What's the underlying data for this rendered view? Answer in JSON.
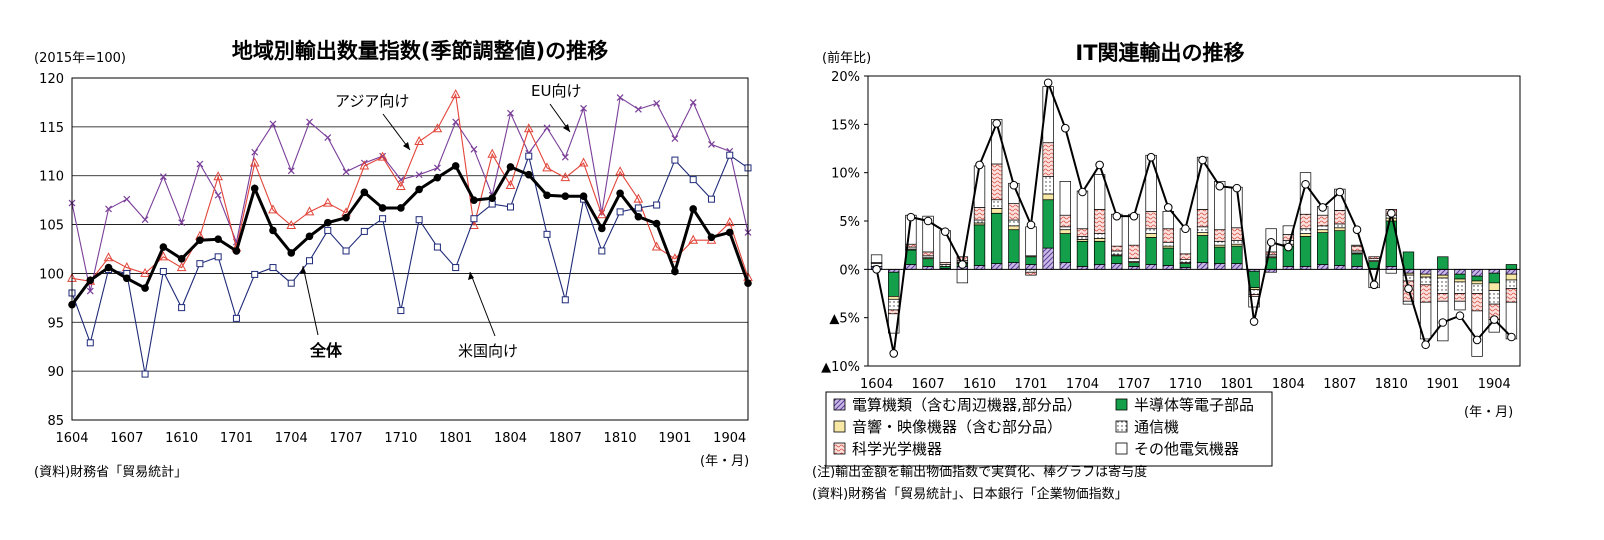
{
  "chart_data": [
    {
      "type": "line",
      "title": "地域別輸出数量指数(季節調整値)の推移",
      "unit_label": "(2015年=100)",
      "xlabel": "(年・月)",
      "source": "(資料)財務省「貿易統計」",
      "ylim": [
        85,
        120
      ],
      "yticks": [
        85,
        90,
        95,
        100,
        105,
        110,
        115,
        120
      ],
      "grid": true,
      "x": [
        "1604",
        "1605",
        "1606",
        "1607",
        "1608",
        "1609",
        "1610",
        "1611",
        "1612",
        "1701",
        "1702",
        "1703",
        "1704",
        "1705",
        "1706",
        "1707",
        "1708",
        "1709",
        "1710",
        "1711",
        "1712",
        "1801",
        "1802",
        "1803",
        "1804",
        "1805",
        "1806",
        "1807",
        "1808",
        "1809",
        "1810",
        "1811",
        "1812",
        "1901",
        "1902",
        "1903",
        "1904",
        "1905"
      ],
      "xtick_labels": [
        "1604",
        "1607",
        "1610",
        "1701",
        "1704",
        "1707",
        "1710",
        "1801",
        "1804",
        "1807",
        "1810",
        "1901",
        "1904"
      ],
      "series": [
        {
          "name": "全体",
          "color": "#000000",
          "values": [
            96.8,
            99.3,
            100.6,
            99.5,
            98.5,
            102.7,
            101.5,
            103.4,
            103.5,
            102.3,
            108.7,
            104.4,
            102.1,
            103.8,
            105.2,
            105.7,
            108.3,
            106.7,
            106.7,
            108.6,
            109.8,
            111.0,
            107.5,
            107.7,
            110.9,
            110.1,
            108.0,
            107.9,
            107.9,
            104.6,
            108.2,
            105.8,
            105.1,
            100.2,
            106.6,
            103.7,
            104.2,
            99.0
          ]
        },
        {
          "name": "アジア向け",
          "color": "#e2453a",
          "values": [
            99.5,
            99.2,
            101.6,
            100.6,
            100.0,
            101.7,
            100.6,
            103.8,
            109.9,
            102.6,
            111.3,
            106.5,
            104.9,
            106.3,
            107.2,
            106.2,
            111.0,
            111.9,
            108.9,
            113.5,
            114.8,
            118.3,
            104.9,
            112.2,
            109.0,
            114.8,
            110.8,
            109.8,
            111.3,
            106.0,
            110.4,
            107.6,
            102.7,
            101.5,
            103.4,
            103.4,
            105.2,
            99.6
          ]
        },
        {
          "name": "EU向け",
          "color": "#7a3f99",
          "values": [
            107.2,
            98.2,
            106.6,
            107.6,
            105.5,
            109.9,
            105.2,
            111.2,
            108.0,
            103.2,
            112.4,
            115.3,
            110.5,
            115.5,
            113.9,
            110.4,
            111.3,
            112.0,
            109.6,
            110.1,
            110.8,
            115.5,
            112.7,
            108.0,
            116.4,
            112.3,
            114.9,
            111.9,
            116.9,
            106.2,
            118.0,
            116.8,
            117.4,
            113.8,
            117.5,
            113.2,
            112.5,
            104.2
          ]
        },
        {
          "name": "米国向け",
          "color": "#1f2a78",
          "values": [
            98.0,
            92.9,
            100.4,
            100.0,
            89.7,
            100.2,
            96.5,
            101.0,
            101.7,
            95.4,
            99.9,
            100.6,
            99.0,
            101.3,
            104.4,
            102.3,
            104.3,
            105.6,
            96.2,
            105.5,
            102.7,
            100.6,
            105.6,
            107.1,
            106.8,
            112.0,
            104.0,
            97.3,
            107.6,
            102.3,
            106.3,
            106.7,
            107.0,
            111.6,
            109.6,
            107.6,
            112.1,
            110.8
          ]
        }
      ],
      "annotations": [
        "アジア向け",
        "EU向け",
        "全体",
        "米国向け"
      ]
    },
    {
      "type": "bar",
      "stacked": true,
      "title": "IT関連輸出の推移",
      "unit_label": "(前年比)",
      "xlabel": "(年・月)",
      "ylim": [
        -10,
        20
      ],
      "yticks": [
        20,
        15,
        10,
        5,
        0,
        -5,
        -10
      ],
      "ytick_labels": [
        "20%",
        "15%",
        "10%",
        "5%",
        "0%",
        "▲5%",
        "▲10%"
      ],
      "x": [
        "1604",
        "1605",
        "1606",
        "1607",
        "1608",
        "1609",
        "1610",
        "1611",
        "1612",
        "1701",
        "1702",
        "1703",
        "1704",
        "1705",
        "1706",
        "1707",
        "1708",
        "1709",
        "1710",
        "1711",
        "1712",
        "1801",
        "1802",
        "1803",
        "1804",
        "1805",
        "1806",
        "1807",
        "1808",
        "1809",
        "1810",
        "1811",
        "1812",
        "1901",
        "1902",
        "1903",
        "1904",
        "1905"
      ],
      "xtick_labels": [
        "1604",
        "1607",
        "1610",
        "1701",
        "1704",
        "1707",
        "1710",
        "1801",
        "1804",
        "1807",
        "1810",
        "1901",
        "1904"
      ],
      "legend": {
        "items": [
          "電算機類（含む周辺機器,部分品）",
          "半導体等電子部品",
          "音響・映像機器（含む部分品）",
          "通信機",
          "科学光学機器",
          "その他電気機器"
        ],
        "placement": "bottom"
      },
      "series": [
        {
          "name": "電算機類（含む周辺機器,部分品）",
          "color": "#9a7fc8",
          "values": [
            0.3,
            -0.3,
            0.5,
            0.3,
            0.1,
            0.3,
            0.4,
            0.6,
            0.7,
            0.5,
            2.2,
            0.7,
            0.3,
            0.5,
            0.6,
            0.3,
            0.5,
            0.4,
            0.2,
            0.7,
            0.6,
            0.6,
            -0.2,
            -0.3,
            0.3,
            0.3,
            0.5,
            0.4,
            0.3,
            0.1,
            0.3,
            -0.4,
            -0.5,
            -0.6,
            -0.5,
            -0.7,
            -0.4,
            -0.5
          ]
        },
        {
          "name": "半導体等電子部品",
          "color": "#14a04a",
          "values": [
            0.0,
            -2.5,
            1.5,
            0.8,
            0.2,
            0.3,
            4.2,
            5.2,
            3.4,
            0.8,
            5.0,
            3.0,
            2.6,
            2.4,
            0.8,
            0.4,
            2.8,
            1.8,
            0.4,
            2.8,
            1.7,
            1.8,
            -1.7,
            1.2,
            2.1,
            3.1,
            3.3,
            3.6,
            1.3,
            0.7,
            4.7,
            1.8,
            0.0,
            1.3,
            -0.5,
            -0.5,
            -1.0,
            0.5
          ]
        },
        {
          "name": "音響・映像機器（含む部分品）",
          "color": "#f7e8a6",
          "values": [
            0.0,
            -0.3,
            0.1,
            0.1,
            0.0,
            0.1,
            0.2,
            0.5,
            0.4,
            0.1,
            0.6,
            0.4,
            0.2,
            0.3,
            0.1,
            0.1,
            0.4,
            0.2,
            0.1,
            0.3,
            0.2,
            0.2,
            -0.2,
            0.1,
            0.2,
            0.3,
            0.3,
            0.3,
            0.1,
            0.1,
            0.3,
            -0.2,
            -0.3,
            -0.3,
            -0.3,
            -0.3,
            -0.8,
            -0.6
          ]
        },
        {
          "name": "通信機",
          "color": "#ffffff",
          "values": [
            0.3,
            -1.1,
            0.2,
            0.2,
            0.2,
            0.2,
            0.3,
            0.9,
            0.6,
            -0.3,
            1.8,
            0.3,
            0.3,
            0.5,
            0.4,
            0.3,
            0.5,
            0.4,
            0.3,
            0.6,
            0.4,
            0.4,
            -0.5,
            0.2,
            0.4,
            0.5,
            0.4,
            0.4,
            0.2,
            0.2,
            0.3,
            -0.6,
            -0.8,
            -1.6,
            -1.2,
            -1.0,
            -1.4,
            -0.9
          ]
        },
        {
          "name": "科学光学機器",
          "color": "#f4b6ae",
          "values": [
            0.1,
            -0.4,
            0.3,
            0.4,
            0.2,
            0.4,
            1.3,
            3.7,
            1.7,
            -0.3,
            3.5,
            1.2,
            0.8,
            2.5,
            0.5,
            1.4,
            1.8,
            1.4,
            0.6,
            1.8,
            1.2,
            1.3,
            -0.2,
            0.3,
            0.6,
            1.5,
            1.1,
            1.4,
            0.5,
            0.2,
            0.6,
            -2.1,
            -1.8,
            -0.8,
            -0.8,
            -1.8,
            -1.6,
            -1.4
          ]
        },
        {
          "name": "その他電気機器",
          "color": "#ffffff",
          "values": [
            0.8,
            -2.0,
            3.0,
            3.7,
            3.3,
            -1.4,
            4.3,
            4.6,
            2.1,
            3.0,
            5.8,
            3.5,
            3.9,
            3.6,
            3.3,
            3.2,
            5.8,
            1.8,
            2.6,
            5.4,
            5.0,
            4.2,
            -1.1,
            2.4,
            0.9,
            4.3,
            0.9,
            2.2,
            0.1,
            -1.9,
            -0.4,
            -0.3,
            -3.8,
            -4.1,
            -0.9,
            -4.7,
            -1.3,
            -3.8
          ]
        }
      ],
      "total": {
        "name": "合計",
        "color": "#000000",
        "values": [
          0.0,
          -8.7,
          5.4,
          5.0,
          3.9,
          0.5,
          10.8,
          15.1,
          8.7,
          4.6,
          19.3,
          14.6,
          8.0,
          10.8,
          5.5,
          5.5,
          11.6,
          6.4,
          4.2,
          11.3,
          8.6,
          8.4,
          -5.4,
          2.8,
          2.3,
          8.8,
          6.4,
          8.0,
          4.1,
          -1.6,
          5.8,
          -2.0,
          -7.8,
          -5.5,
          -4.8,
          -7.3,
          -5.2,
          -7.0
        ]
      },
      "notes": [
        "(注)輸出金額を輸出物価指数で実質化、棒グラフは寄与度",
        "(資料)財務省「貿易統計」、日本銀行「企業物価指数」"
      ]
    }
  ]
}
